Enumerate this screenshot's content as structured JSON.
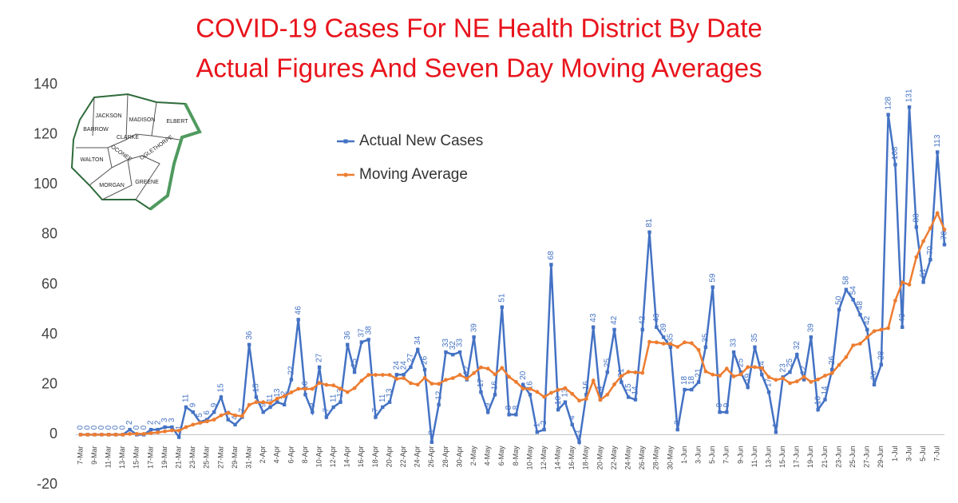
{
  "map": {
    "counties": [
      "JACKSON",
      "MADISON",
      "ELBERT",
      "BARROW",
      "CLARKE",
      "OCONEE",
      "OGLETHORPE",
      "WALTON",
      "MORGAN",
      "GREENE"
    ]
  },
  "chart_data": {
    "type": "line",
    "title": "COVID-19 Cases For NE Health District By Date",
    "subtitle": "Actual Figures And Seven Day Moving Averages",
    "categories": [
      "7-Mar",
      null,
      "9-Mar",
      null,
      "11-Mar",
      null,
      "13-Mar",
      null,
      "15-Mar",
      null,
      "17-Mar",
      null,
      "19-Mar",
      null,
      "21-Mar",
      null,
      "23-Mar",
      null,
      "25-Mar",
      null,
      "27-Mar",
      null,
      "29-Mar",
      null,
      "31-Mar",
      null,
      "2-Apr",
      null,
      "4-Apr",
      null,
      "6-Apr",
      null,
      "8-Apr",
      null,
      "10-Apr",
      null,
      "12-Apr",
      null,
      "14-Apr",
      null,
      "16-Apr",
      null,
      "18-Apr",
      null,
      "20-Apr",
      null,
      "22-Apr",
      null,
      "24-Apr",
      null,
      "26-Apr",
      null,
      "28-Apr",
      null,
      "30-Apr",
      null,
      "2-May",
      null,
      "4-May",
      null,
      "6-May",
      null,
      "8-May",
      null,
      "10-May",
      null,
      "12-May",
      null,
      "14-May",
      null,
      "16-May",
      null,
      "18-May",
      null,
      "20-May",
      null,
      "22-May",
      null,
      "24-May",
      null,
      "26-May",
      null,
      "28-May",
      null,
      "30-May",
      null,
      "1-Jun",
      null,
      "3-Jun",
      null,
      "5-Jun",
      null,
      "7-Jun",
      null,
      "9-Jun",
      null,
      "11-Jun",
      null,
      "13-Jun",
      null,
      "15-Jun",
      null,
      "17-Jun",
      null,
      "19-Jun",
      null,
      "21-Jun",
      null,
      "23-Jun",
      null,
      "25-Jun",
      null,
      "27-Jun",
      null,
      "29-Jun",
      null,
      "1-Jul",
      null,
      "3-Jul",
      null,
      "5-Jul",
      null,
      "7-Jul",
      null
    ],
    "series": [
      {
        "name": "Actual New Cases",
        "color": "#4472c4",
        "values": [
          0,
          0,
          0,
          0,
          0,
          0,
          0,
          2,
          0,
          0,
          2,
          2,
          3,
          3,
          -1,
          11,
          9,
          5,
          6,
          9,
          15,
          6,
          4,
          7,
          36,
          15,
          9,
          11,
          13,
          12,
          22,
          46,
          16,
          9,
          27,
          7,
          11,
          13,
          36,
          25,
          37,
          38,
          7,
          11,
          13,
          24,
          24,
          27,
          34,
          26,
          -3,
          12,
          33,
          32,
          33,
          22,
          39,
          17,
          9,
          16,
          51,
          8,
          8,
          20,
          16,
          1,
          2,
          68,
          10,
          13,
          4,
          -3,
          16,
          43,
          14,
          25,
          42,
          21,
          15,
          14,
          42,
          81,
          43,
          39,
          35,
          2,
          18,
          18,
          21,
          35,
          59,
          9,
          9,
          33,
          25,
          19,
          35,
          24,
          17,
          1,
          23,
          25,
          32,
          22,
          39,
          10,
          14,
          26,
          50,
          58,
          54,
          48,
          42,
          20,
          28,
          128,
          108,
          43,
          131,
          83,
          61,
          70,
          113,
          76
        ]
      },
      {
        "name": "Moving Average",
        "color": "#ed7d31",
        "values": [
          0,
          0,
          0,
          0,
          0,
          0,
          0,
          0.3,
          0.3,
          0.3,
          0.6,
          0.9,
          1.3,
          1.7,
          1.6,
          3,
          4,
          4.7,
          5.3,
          6,
          7.7,
          8.7,
          7.7,
          7.4,
          11.9,
          13,
          13,
          12.6,
          14.4,
          15.4,
          16.9,
          18.3,
          18.3,
          18.3,
          20.7,
          19.9,
          19.7,
          18.4,
          17,
          18.6,
          21.6,
          23.9,
          23.9,
          23.9,
          23.9,
          22.3,
          22.6,
          20.6,
          20,
          22.7,
          20.4,
          20.3,
          21.9,
          22.6,
          23.9,
          22.4,
          24.6,
          26.9,
          26.4,
          24.1,
          26.7,
          23.1,
          21.1,
          18.4,
          18.3,
          17.1,
          15.1,
          16.7,
          17.9,
          18.6,
          16.3,
          13.6,
          14.3,
          21.6,
          13.9,
          16,
          20.1,
          23.4,
          25.1,
          24.9,
          24.7,
          37.1,
          36.9,
          36.4,
          36.3,
          35.1,
          36.9,
          36.6,
          33.9,
          25.3,
          24,
          23.6,
          26.4,
          23.3,
          24.1,
          27,
          27,
          26.6,
          23,
          21.9,
          22.5,
          20.6,
          21.3,
          23.1,
          21.1,
          22.1,
          23.6,
          24.6,
          27.9,
          31,
          35.7,
          36.4,
          38.9,
          41.4,
          42,
          42.6,
          53.6,
          60.9,
          60,
          71,
          77.4,
          82.6,
          88.6,
          82
        ]
      }
    ],
    "ylim": [
      -20,
      140
    ],
    "yticks": [
      -20,
      0,
      20,
      40,
      60,
      80,
      100,
      120,
      140
    ],
    "data_labels": "Actual New Cases",
    "legend": "upper left"
  }
}
